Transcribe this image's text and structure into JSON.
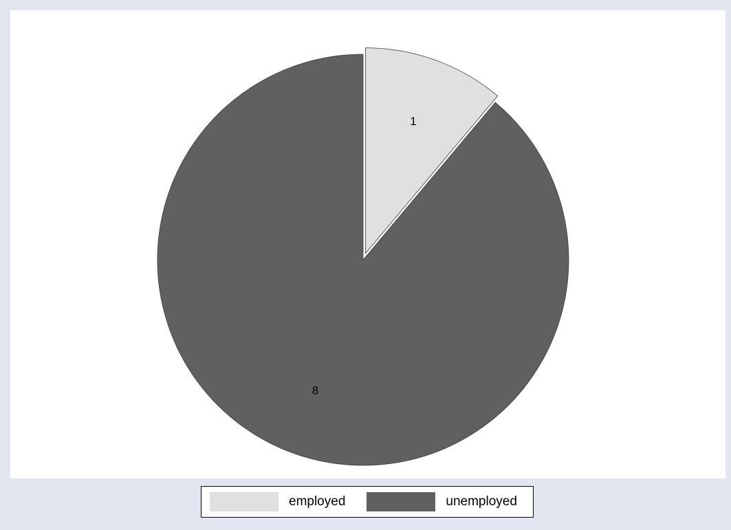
{
  "chart_data": {
    "type": "pie",
    "slices": [
      {
        "label": "employed",
        "value": 1,
        "color": "#e0e0e0",
        "exploded": true
      },
      {
        "label": "unemployed",
        "value": 8,
        "color": "#606060",
        "exploded": false
      }
    ],
    "start_angle_deg": 0,
    "direction": "clockwise",
    "slice_labels_show": "values",
    "legend": {
      "position": "bottom",
      "entries": [
        "employed",
        "unemployed"
      ]
    },
    "background_color": "#e1e6f0",
    "plot_background_color": "#ffffff"
  }
}
